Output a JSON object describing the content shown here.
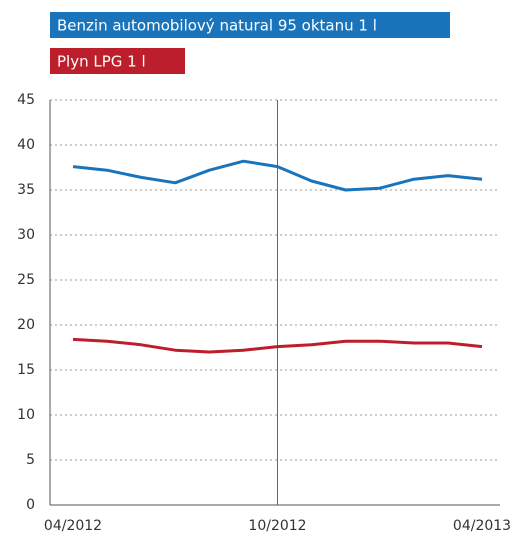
{
  "chart_data": {
    "type": "line",
    "categories": [
      "04/2012",
      null,
      null,
      null,
      null,
      null,
      "10/2012",
      null,
      null,
      null,
      null,
      null,
      "04/2013"
    ],
    "series": [
      {
        "name": "Benzin automobilový natural 95 oktanu 1 l",
        "color": "#1a74bb",
        "values": [
          37.6,
          37.2,
          36.4,
          35.8,
          37.2,
          38.2,
          37.6,
          36.0,
          35.0,
          35.2,
          36.2,
          36.6,
          36.2
        ]
      },
      {
        "name": "Plyn LPG 1 l",
        "color": "#bd1e2c",
        "values": [
          18.4,
          18.2,
          17.8,
          17.2,
          17.0,
          17.2,
          17.6,
          17.8,
          18.2,
          18.2,
          18.0,
          18.0,
          17.6
        ]
      }
    ],
    "ylim": [
      0,
      45
    ],
    "yticks": [
      0,
      5,
      10,
      15,
      20,
      25,
      30,
      35,
      40,
      45
    ],
    "grid": true,
    "vline": "10/2012"
  }
}
